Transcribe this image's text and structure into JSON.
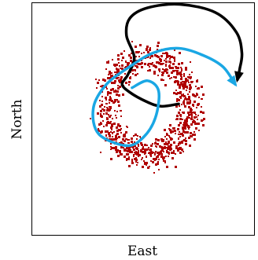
{
  "chart_data": {
    "type": "scatter",
    "xlabel": "East",
    "ylabel": "North",
    "xlim": [
      0,
      1
    ],
    "ylim": [
      0,
      1
    ],
    "grid": false,
    "legend": "none",
    "colors": {
      "cells": "#b00000",
      "black_path": "#000000",
      "blue_path": "#1aa7e4",
      "frame": "#000000",
      "background": "#ffffff"
    },
    "cell_ring": {
      "center": [
        0.52,
        0.555
      ],
      "radius_x": 0.19,
      "radius_y": 0.21,
      "spread": 0.03,
      "count": 900
    },
    "series": [
      {
        "color": "#000000",
        "arrow": "end",
        "points": [
          [
            0.66,
            0.565
          ],
          [
            0.58,
            0.555
          ],
          [
            0.515,
            0.575
          ],
          [
            0.44,
            0.615
          ],
          [
            0.405,
            0.65
          ],
          [
            0.43,
            0.69
          ],
          [
            0.46,
            0.765
          ],
          [
            0.425,
            0.86
          ],
          [
            0.44,
            0.935
          ],
          [
            0.52,
            0.98
          ],
          [
            0.665,
            0.995
          ],
          [
            0.825,
            0.96
          ],
          [
            0.92,
            0.875
          ],
          [
            0.945,
            0.785
          ],
          [
            0.935,
            0.715
          ],
          [
            0.925,
            0.67
          ]
        ]
      },
      {
        "color": "#1aa7e4",
        "arrow": "end",
        "points": [
          [
            0.45,
            0.635
          ],
          [
            0.52,
            0.665
          ],
          [
            0.57,
            0.62
          ],
          [
            0.555,
            0.505
          ],
          [
            0.5,
            0.42
          ],
          [
            0.425,
            0.385
          ],
          [
            0.3,
            0.435
          ],
          [
            0.275,
            0.545
          ],
          [
            0.33,
            0.645
          ],
          [
            0.43,
            0.72
          ],
          [
            0.545,
            0.785
          ],
          [
            0.66,
            0.805
          ],
          [
            0.77,
            0.775
          ],
          [
            0.86,
            0.725
          ],
          [
            0.915,
            0.65
          ]
        ]
      }
    ]
  }
}
